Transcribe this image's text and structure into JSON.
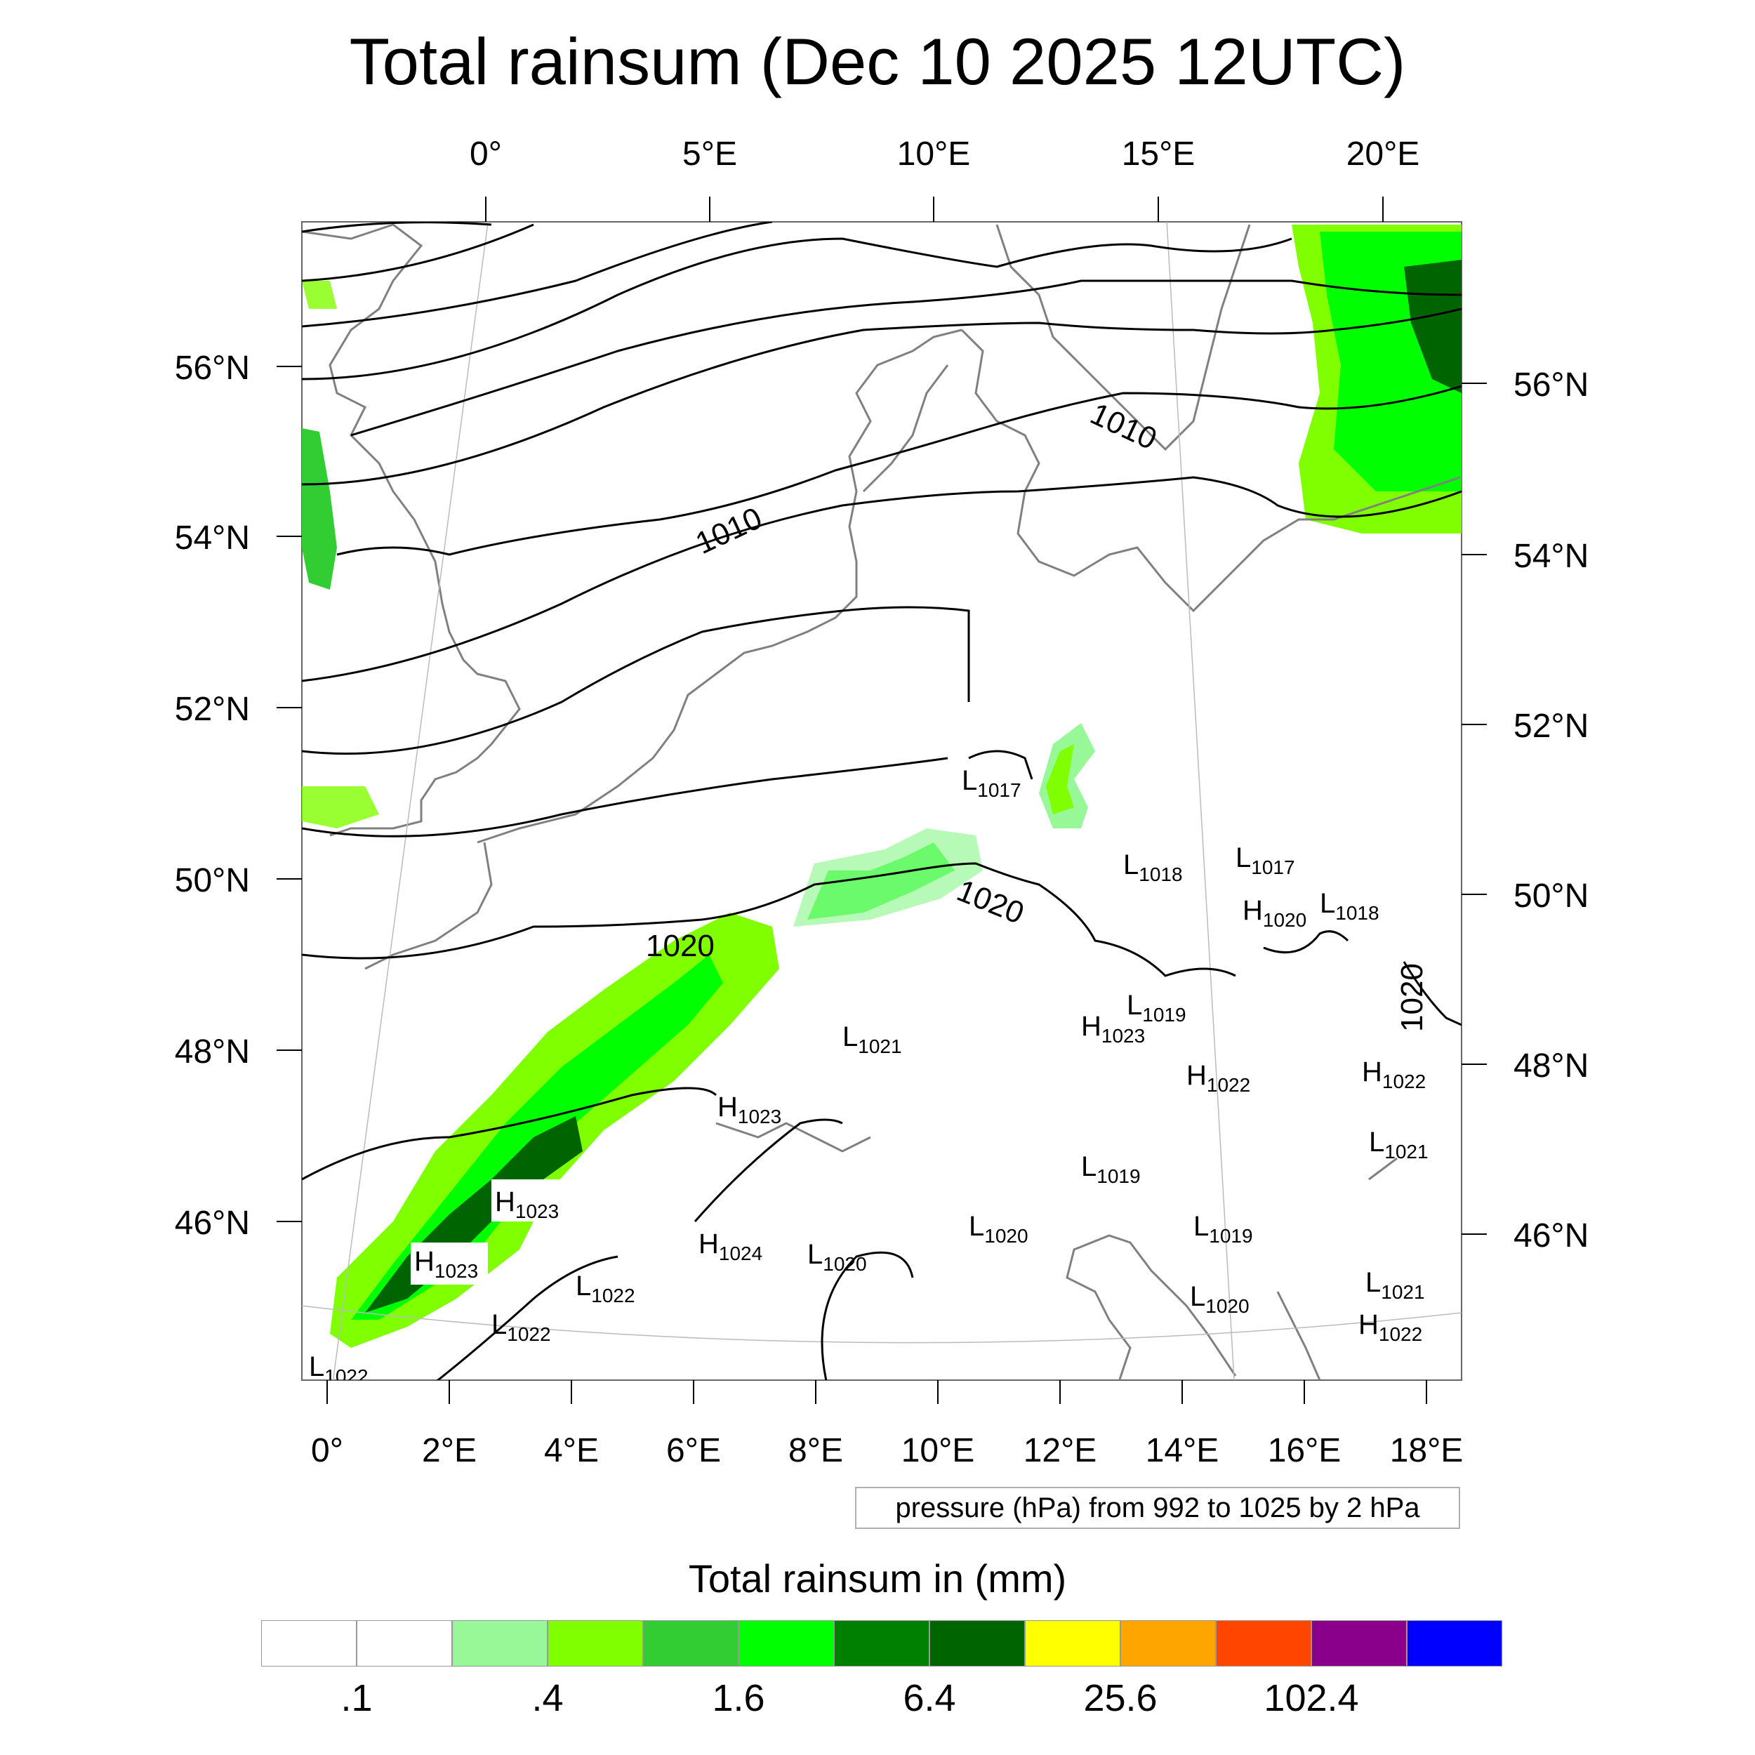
{
  "title": "Total rainsum (Dec 10 2025 12UTC)",
  "top_lon_labels": [
    "0°",
    "5°E",
    "10°E",
    "15°E",
    "20°E"
  ],
  "bottom_lon_labels": [
    "0°",
    "2°E",
    "4°E",
    "6°E",
    "8°E",
    "10°E",
    "12°E",
    "14°E",
    "16°E",
    "18°E"
  ],
  "left_lat_labels": [
    "56°N",
    "54°N",
    "52°N",
    "50°N",
    "48°N",
    "46°N"
  ],
  "right_lat_labels": [
    "56°N",
    "54°N",
    "52°N",
    "50°N",
    "48°N",
    "46°N"
  ],
  "isobar_labels": [
    "1010",
    "1010",
    "1020",
    "1020",
    "1020"
  ],
  "pressure_centers": [
    {
      "type": "L",
      "value": "1017"
    },
    {
      "type": "L",
      "value": "1018"
    },
    {
      "type": "L",
      "value": "1017"
    },
    {
      "type": "H",
      "value": "1020"
    },
    {
      "type": "L",
      "value": "1018"
    },
    {
      "type": "L",
      "value": "1019"
    },
    {
      "type": "H",
      "value": "1023"
    },
    {
      "type": "L",
      "value": "1021"
    },
    {
      "type": "H",
      "value": "1022"
    },
    {
      "type": "H",
      "value": "1022"
    },
    {
      "type": "H",
      "value": "1023"
    },
    {
      "type": "L",
      "value": "1021"
    },
    {
      "type": "H",
      "value": "1023"
    },
    {
      "type": "L",
      "value": "1019"
    },
    {
      "type": "H",
      "value": "1024"
    },
    {
      "type": "L",
      "value": "1020"
    },
    {
      "type": "L",
      "value": "1019"
    },
    {
      "type": "H",
      "value": "1023"
    },
    {
      "type": "L",
      "value": "1020"
    },
    {
      "type": "L",
      "value": "1022"
    },
    {
      "type": "L",
      "value": "1020"
    },
    {
      "type": "L",
      "value": "1021"
    },
    {
      "type": "L",
      "value": "1022"
    },
    {
      "type": "H",
      "value": "1022"
    },
    {
      "type": "L",
      "value": "1022"
    }
  ],
  "info_text": "pressure (hPa) from 992 to 1025 by 2 hPa",
  "colorbar": {
    "title": "Total rainsum in (mm)",
    "colors": [
      "#ffffff",
      "#ffffff",
      "#98f898",
      "#80ff00",
      "#32cd32",
      "#00ff00",
      "#008000",
      "#006400",
      "#ffff00",
      "#ffa500",
      "#ff4500",
      "#8b008b",
      "#0000ff"
    ],
    "tick_labels": [
      ".1",
      ".4",
      "1.6",
      "6.4",
      "25.6",
      "102.4"
    ]
  }
}
